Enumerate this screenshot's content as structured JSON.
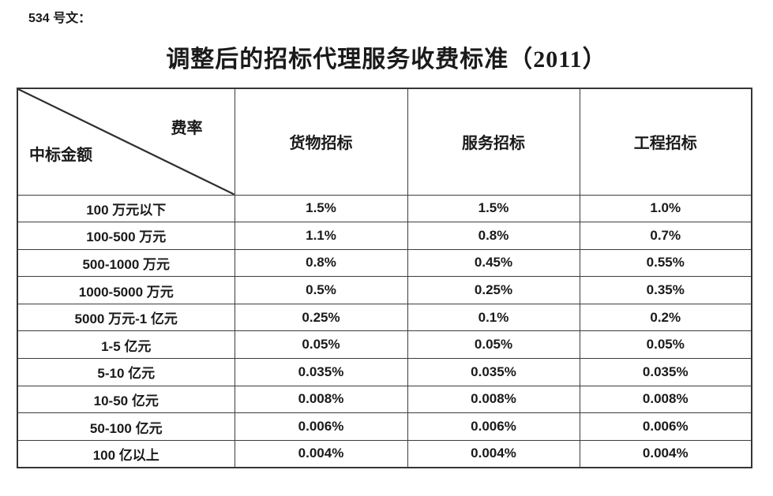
{
  "document": {
    "doc_label": "534 号文：",
    "title": "调整后的招标代理服务收费标准（2011）"
  },
  "table": {
    "corner": {
      "top_right": "费率",
      "bottom_left": "中标金额"
    },
    "columns": [
      "货物招标",
      "服务招标",
      "工程招标"
    ],
    "rows": [
      {
        "label": "100 万元以下",
        "values": [
          "1.5%",
          "1.5%",
          "1.0%"
        ]
      },
      {
        "label": "100-500 万元",
        "values": [
          "1.1%",
          "0.8%",
          "0.7%"
        ]
      },
      {
        "label": "500-1000 万元",
        "values": [
          "0.8%",
          "0.45%",
          "0.55%"
        ]
      },
      {
        "label": "1000-5000 万元",
        "values": [
          "0.5%",
          "0.25%",
          "0.35%"
        ]
      },
      {
        "label": "5000 万元-1 亿元",
        "values": [
          "0.25%",
          "0.1%",
          "0.2%"
        ]
      },
      {
        "label": "1-5 亿元",
        "values": [
          "0.05%",
          "0.05%",
          "0.05%"
        ]
      },
      {
        "label": "5-10 亿元",
        "values": [
          "0.035%",
          "0.035%",
          "0.035%"
        ]
      },
      {
        "label": "10-50 亿元",
        "values": [
          "0.008%",
          "0.008%",
          "0.008%"
        ]
      },
      {
        "label": "50-100 亿元",
        "values": [
          "0.006%",
          "0.006%",
          "0.006%"
        ]
      },
      {
        "label": "100 亿以上",
        "values": [
          "0.004%",
          "0.004%",
          "0.004%"
        ]
      }
    ]
  },
  "colors": {
    "text": "#1a1a1a",
    "border": "#3c3c3c",
    "background": "#ffffff"
  }
}
